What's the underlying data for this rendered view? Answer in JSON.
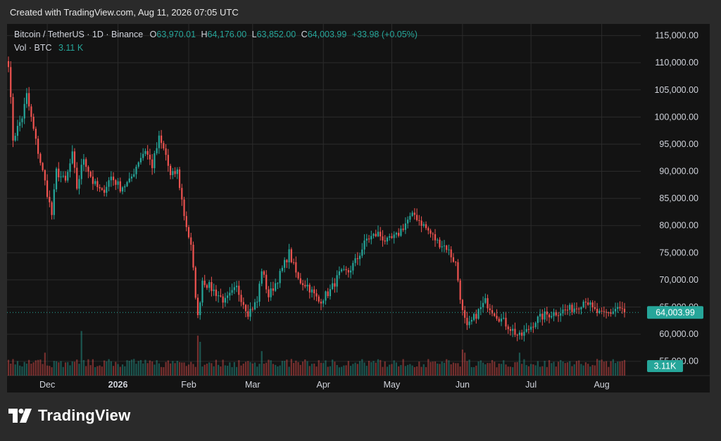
{
  "header": {
    "credit": "Created with TradingView.com, Aug 11, 2026 07:05 UTC"
  },
  "legend": {
    "symbol": "Bitcoin / TetherUS · 1D · Binance",
    "open_label": "O",
    "open": "63,970.01",
    "high_label": "H",
    "high": "64,176.00",
    "low_label": "L",
    "low": "63,852.00",
    "close_label": "C",
    "close": "64,003.99",
    "change": "+33.98 (+0.05%)",
    "vol_label": "Vol · BTC",
    "vol": "3.11 K"
  },
  "brand": {
    "name": "TradingView"
  },
  "colors": {
    "up": "#26a69a",
    "down": "#ef5350",
    "background": "#131313",
    "grid": "#2b2b2b",
    "axis_text": "#d1d4dc"
  },
  "chart_data": {
    "type": "candlestick",
    "title": "Bitcoin / TetherUS · 1D · Binance",
    "ylim": [
      52500,
      116500
    ],
    "y_ticks": [
      55000,
      60000,
      65000,
      70000,
      75000,
      80000,
      85000,
      90000,
      95000,
      100000,
      105000,
      110000,
      115000
    ],
    "y_tick_labels": [
      "55,000.00",
      "60,000.00",
      "65,000.00",
      "70,000.00",
      "75,000.00",
      "80,000.00",
      "85,000.00",
      "90,000.00",
      "95,000.00",
      "100,000.00",
      "105,000.00",
      "110,000.00",
      "115,000.00"
    ],
    "x_start": "2025-11-14",
    "x_end": "2026-08-11",
    "x_ticks": [
      "2025-12-01",
      "2026-01-01",
      "2026-02-01",
      "2026-03-01",
      "2026-04-01",
      "2026-05-01",
      "2026-06-01",
      "2026-07-01",
      "2026-08-01"
    ],
    "x_tick_labels": [
      "Dec",
      "2026",
      "Feb",
      "Mar",
      "Apr",
      "May",
      "Jun",
      "Jul",
      "Aug"
    ],
    "last_price": 64003.99,
    "last_price_label": "64,003.99",
    "last_volume_label": "3.11K",
    "close_path": [
      [
        "2025-11-14",
        110000
      ],
      [
        "2025-11-16",
        96000
      ],
      [
        "2025-11-20",
        100000
      ],
      [
        "2025-11-22",
        104000
      ],
      [
        "2025-11-26",
        95500
      ],
      [
        "2025-11-30",
        88000
      ],
      [
        "2025-12-03",
        82000
      ],
      [
        "2025-12-05",
        90000
      ],
      [
        "2025-12-09",
        88000
      ],
      [
        "2025-12-12",
        93000
      ],
      [
        "2025-12-14",
        87000
      ],
      [
        "2025-12-17",
        92500
      ],
      [
        "2025-12-21",
        88000
      ],
      [
        "2025-12-25",
        86000
      ],
      [
        "2025-12-29",
        89000
      ],
      [
        "2026-01-02",
        87000
      ],
      [
        "2026-01-06",
        88000
      ],
      [
        "2026-01-10",
        92000
      ],
      [
        "2026-01-13",
        94000
      ],
      [
        "2026-01-16",
        91000
      ],
      [
        "2026-01-19",
        96000
      ],
      [
        "2026-01-22",
        93000
      ],
      [
        "2026-01-24",
        89000
      ],
      [
        "2026-01-27",
        90000
      ],
      [
        "2026-01-30",
        82000
      ],
      [
        "2026-02-02",
        76000
      ],
      [
        "2026-02-05",
        63000
      ],
      [
        "2026-02-07",
        70000
      ],
      [
        "2026-02-12",
        68000
      ],
      [
        "2026-02-17",
        66000
      ],
      [
        "2026-02-22",
        68500
      ],
      [
        "2026-02-27",
        64000
      ],
      [
        "2026-03-03",
        66000
      ],
      [
        "2026-03-05",
        72000
      ],
      [
        "2026-03-08",
        67000
      ],
      [
        "2026-03-13",
        71000
      ],
      [
        "2026-03-17",
        75000
      ],
      [
        "2026-03-21",
        70000
      ],
      [
        "2026-03-25",
        69000
      ],
      [
        "2026-03-30",
        66000
      ],
      [
        "2026-04-04",
        68000
      ],
      [
        "2026-04-08",
        71000
      ],
      [
        "2026-04-12",
        71500
      ],
      [
        "2026-04-16",
        74000
      ],
      [
        "2026-04-20",
        77500
      ],
      [
        "2026-04-25",
        78500
      ],
      [
        "2026-04-29",
        77000
      ],
      [
        "2026-05-03",
        78000
      ],
      [
        "2026-05-08",
        81000
      ],
      [
        "2026-05-11",
        82000
      ],
      [
        "2026-05-16",
        79500
      ],
      [
        "2026-05-21",
        77000
      ],
      [
        "2026-05-25",
        76000
      ],
      [
        "2026-05-29",
        73000
      ],
      [
        "2026-06-01",
        64000
      ],
      [
        "2026-06-03",
        61000
      ],
      [
        "2026-06-06",
        63000
      ],
      [
        "2026-06-11",
        66000
      ],
      [
        "2026-06-16",
        63500
      ],
      [
        "2026-06-21",
        61500
      ],
      [
        "2026-06-26",
        59500
      ],
      [
        "2026-06-29",
        60500
      ],
      [
        "2026-07-03",
        62500
      ],
      [
        "2026-07-07",
        63500
      ],
      [
        "2026-07-12",
        64000
      ],
      [
        "2026-07-17",
        64500
      ],
      [
        "2026-07-21",
        65000
      ],
      [
        "2026-07-25",
        66500
      ],
      [
        "2026-07-28",
        64500
      ],
      [
        "2026-08-01",
        63500
      ],
      [
        "2026-08-05",
        64000
      ],
      [
        "2026-08-08",
        65000
      ],
      [
        "2026-08-11",
        64004
      ]
    ],
    "volume_spikes": [
      [
        "2025-11-30",
        1.3
      ],
      [
        "2025-12-16",
        2.7
      ],
      [
        "2026-02-05",
        2.4
      ],
      [
        "2026-02-06",
        2.0
      ],
      [
        "2026-03-05",
        1.4
      ],
      [
        "2026-06-01",
        1.5
      ],
      [
        "2026-06-02",
        1.3
      ],
      [
        "2026-06-26",
        1.3
      ]
    ]
  }
}
